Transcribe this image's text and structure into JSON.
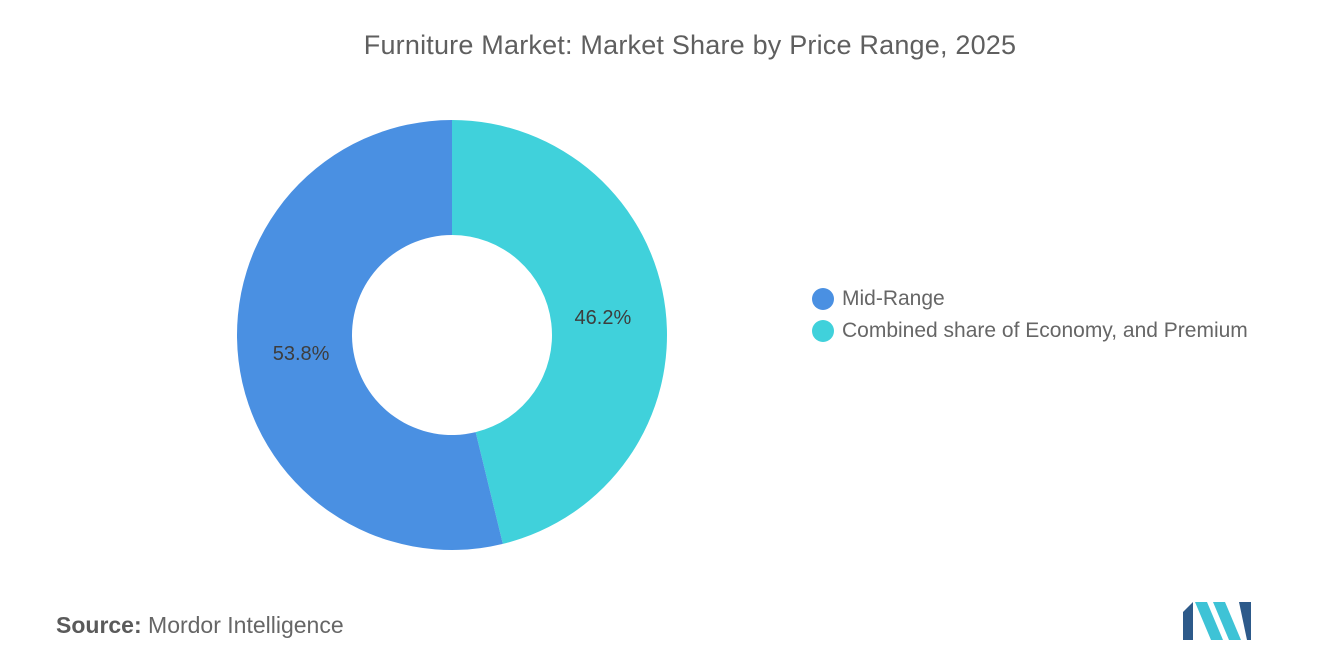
{
  "chart_data": {
    "type": "pie",
    "variant": "donut",
    "title": "Furniture Market: Market Share by Price Range, 2025",
    "categories": [
      "Mid-Range",
      "Combined share of Economy, and Premium"
    ],
    "values": [
      53.8,
      46.2
    ],
    "labels": [
      "53.8%",
      "46.2%"
    ],
    "colors": [
      "#4a90e2",
      "#40d1db"
    ],
    "legend_position": "right"
  },
  "source": {
    "label": "Source:",
    "value": "Mordor Intelligence"
  },
  "logo": {
    "colors": [
      "#2d5a8a",
      "#3ec3d6"
    ]
  }
}
